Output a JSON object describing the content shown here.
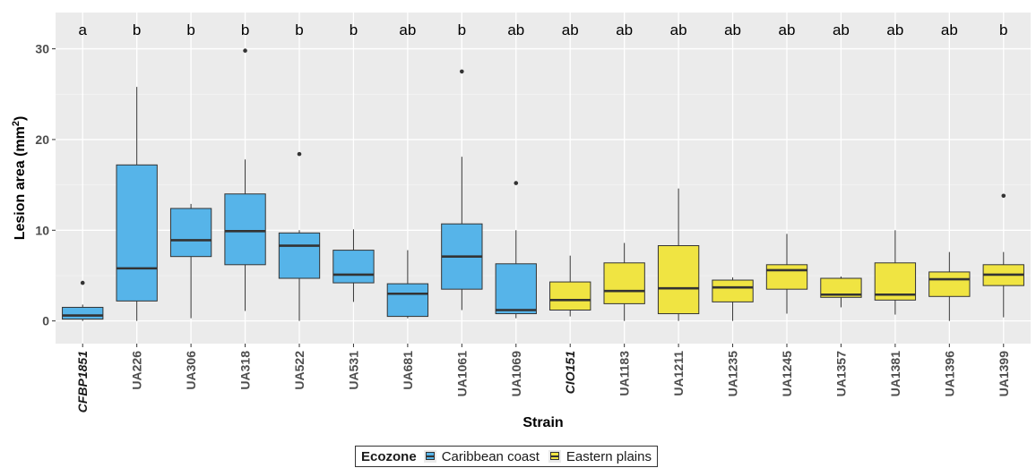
{
  "chart_data": {
    "type": "boxplot",
    "xlabel": "Strain",
    "ylabel": "Lesion area (mm²)",
    "ylabel_main": "Lesion area (mm",
    "ylabel_sup": "2",
    "ylabel_close": ")",
    "ylim": [
      -2.5,
      34
    ],
    "yticks": [
      0,
      10,
      20,
      30
    ],
    "grid": true,
    "legend": {
      "position": "bottom",
      "title": "Ecozone",
      "entries": [
        {
          "name": "Caribbean coast",
          "color": "#56B4E9"
        },
        {
          "name": "Eastern plains",
          "color": "#F0E442"
        }
      ]
    },
    "categories": [
      "CFBP1851",
      "UA226",
      "UA306",
      "UA318",
      "UA522",
      "UA531",
      "UA681",
      "UA1061",
      "UA1069",
      "CIO151",
      "UA1183",
      "UA1211",
      "UA1235",
      "UA1245",
      "UA1357",
      "UA1381",
      "UA1396",
      "UA1399"
    ],
    "italic_categories": [
      "CFBP1851",
      "CIO151"
    ],
    "letters": [
      "a",
      "b",
      "b",
      "b",
      "b",
      "b",
      "ab",
      "b",
      "ab",
      "ab",
      "ab",
      "ab",
      "ab",
      "ab",
      "ab",
      "ab",
      "ab",
      "b"
    ],
    "boxes": [
      {
        "strain": "CFBP1851",
        "group": "Caribbean coast",
        "lower_whisker": 0.0,
        "q1": 0.2,
        "median": 0.6,
        "q3": 1.5,
        "upper_whisker": 1.8,
        "outliers": [
          4.2
        ]
      },
      {
        "strain": "UA226",
        "group": "Caribbean coast",
        "lower_whisker": 0.0,
        "q1": 2.2,
        "median": 5.8,
        "q3": 17.2,
        "upper_whisker": 25.8,
        "outliers": []
      },
      {
        "strain": "UA306",
        "group": "Caribbean coast",
        "lower_whisker": 0.3,
        "q1": 7.1,
        "median": 8.9,
        "q3": 12.4,
        "upper_whisker": 12.9,
        "outliers": []
      },
      {
        "strain": "UA318",
        "group": "Caribbean coast",
        "lower_whisker": 1.1,
        "q1": 6.2,
        "median": 9.9,
        "q3": 14.0,
        "upper_whisker": 17.8,
        "outliers": [
          29.8
        ]
      },
      {
        "strain": "UA522",
        "group": "Caribbean coast",
        "lower_whisker": 0.0,
        "q1": 4.7,
        "median": 8.3,
        "q3": 9.7,
        "upper_whisker": 10.0,
        "outliers": [
          18.4
        ]
      },
      {
        "strain": "UA531",
        "group": "Caribbean coast",
        "lower_whisker": 2.1,
        "q1": 4.2,
        "median": 5.1,
        "q3": 7.8,
        "upper_whisker": 10.1,
        "outliers": []
      },
      {
        "strain": "UA681",
        "group": "Caribbean coast",
        "lower_whisker": 0.3,
        "q1": 0.5,
        "median": 3.0,
        "q3": 4.1,
        "upper_whisker": 7.8,
        "outliers": []
      },
      {
        "strain": "UA1061",
        "group": "Caribbean coast",
        "lower_whisker": 1.2,
        "q1": 3.5,
        "median": 7.1,
        "q3": 10.7,
        "upper_whisker": 18.1,
        "outliers": [
          27.5
        ]
      },
      {
        "strain": "UA1069",
        "group": "Caribbean coast",
        "lower_whisker": 0.3,
        "q1": 0.8,
        "median": 1.2,
        "q3": 6.3,
        "upper_whisker": 10.0,
        "outliers": [
          15.2
        ]
      },
      {
        "strain": "CIO151",
        "group": "Eastern plains",
        "lower_whisker": 0.5,
        "q1": 1.2,
        "median": 2.3,
        "q3": 4.3,
        "upper_whisker": 7.2,
        "outliers": []
      },
      {
        "strain": "UA1183",
        "group": "Eastern plains",
        "lower_whisker": 0.0,
        "q1": 1.9,
        "median": 3.3,
        "q3": 6.4,
        "upper_whisker": 8.6,
        "outliers": []
      },
      {
        "strain": "UA1211",
        "group": "Eastern plains",
        "lower_whisker": 0.0,
        "q1": 0.8,
        "median": 3.6,
        "q3": 8.3,
        "upper_whisker": 14.6,
        "outliers": []
      },
      {
        "strain": "UA1235",
        "group": "Eastern plains",
        "lower_whisker": 0.0,
        "q1": 2.1,
        "median": 3.7,
        "q3": 4.5,
        "upper_whisker": 4.8,
        "outliers": []
      },
      {
        "strain": "UA1245",
        "group": "Eastern plains",
        "lower_whisker": 0.8,
        "q1": 3.5,
        "median": 5.6,
        "q3": 6.2,
        "upper_whisker": 9.6,
        "outliers": []
      },
      {
        "strain": "UA1357",
        "group": "Eastern plains",
        "lower_whisker": 1.5,
        "q1": 2.6,
        "median": 2.9,
        "q3": 4.7,
        "upper_whisker": 4.9,
        "outliers": []
      },
      {
        "strain": "UA1381",
        "group": "Eastern plains",
        "lower_whisker": 0.7,
        "q1": 2.3,
        "median": 2.9,
        "q3": 6.4,
        "upper_whisker": 10.0,
        "outliers": []
      },
      {
        "strain": "UA1396",
        "group": "Eastern plains",
        "lower_whisker": 0.0,
        "q1": 2.7,
        "median": 4.6,
        "q3": 5.4,
        "upper_whisker": 7.6,
        "outliers": []
      },
      {
        "strain": "UA1399",
        "group": "Eastern plains",
        "lower_whisker": 0.4,
        "q1": 3.9,
        "median": 5.1,
        "q3": 6.2,
        "upper_whisker": 7.6,
        "outliers": [
          13.8
        ]
      }
    ]
  }
}
